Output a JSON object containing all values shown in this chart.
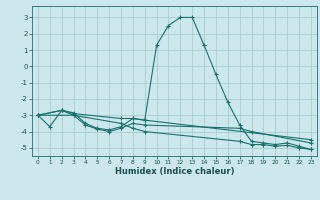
{
  "xlabel": "Humidex (Indice chaleur)",
  "ylabel": "",
  "bg_color": "#cce8ec",
  "grid_color": "#aacccc",
  "line_color": "#1a7070",
  "xlim": [
    -0.5,
    23.5
  ],
  "ylim": [
    -5.5,
    3.7
  ],
  "yticks": [
    -5,
    -4,
    -3,
    -2,
    -1,
    0,
    1,
    2,
    3
  ],
  "xticks": [
    0,
    1,
    2,
    3,
    4,
    5,
    6,
    7,
    8,
    9,
    10,
    11,
    12,
    13,
    14,
    15,
    16,
    17,
    18,
    19,
    20,
    21,
    22,
    23
  ],
  "series": [
    [
      0,
      -3.0
    ],
    [
      1,
      -3.7
    ],
    [
      2,
      -2.7
    ],
    [
      3,
      -2.85
    ],
    [
      4,
      -3.5
    ],
    [
      5,
      -3.8
    ],
    [
      6,
      -3.9
    ],
    [
      7,
      -3.7
    ],
    [
      8,
      -3.2
    ],
    [
      9,
      -3.3
    ],
    [
      10,
      1.3
    ],
    [
      11,
      2.5
    ],
    [
      12,
      3.0
    ],
    [
      13,
      3.0
    ],
    [
      14,
      1.3
    ],
    [
      15,
      -0.5
    ],
    [
      16,
      -2.2
    ],
    [
      17,
      -3.6
    ],
    [
      18,
      -4.6
    ],
    [
      19,
      -4.7
    ],
    [
      20,
      -4.8
    ],
    [
      21,
      -4.7
    ],
    [
      22,
      -4.9
    ],
    [
      23,
      -5.1
    ]
  ],
  "line2": [
    [
      0,
      -3.0
    ],
    [
      2,
      -2.7
    ],
    [
      3,
      -2.9
    ],
    [
      7,
      -3.2
    ],
    [
      8,
      -3.2
    ],
    [
      9,
      -3.3
    ],
    [
      23,
      -4.5
    ]
  ],
  "line3": [
    [
      0,
      -3.0
    ],
    [
      2,
      -2.7
    ],
    [
      3,
      -3.0
    ],
    [
      4,
      -3.6
    ],
    [
      5,
      -3.85
    ],
    [
      6,
      -4.0
    ],
    [
      7,
      -3.8
    ],
    [
      8,
      -3.5
    ],
    [
      9,
      -3.6
    ],
    [
      17,
      -3.8
    ],
    [
      18,
      -4.0
    ],
    [
      23,
      -4.7
    ]
  ],
  "line4": [
    [
      0,
      -3.0
    ],
    [
      3,
      -3.0
    ],
    [
      7,
      -3.5
    ],
    [
      8,
      -3.8
    ],
    [
      9,
      -4.0
    ],
    [
      17,
      -4.6
    ],
    [
      18,
      -4.8
    ],
    [
      19,
      -4.8
    ],
    [
      20,
      -4.9
    ],
    [
      21,
      -4.85
    ],
    [
      22,
      -5.0
    ],
    [
      23,
      -5.1
    ]
  ]
}
